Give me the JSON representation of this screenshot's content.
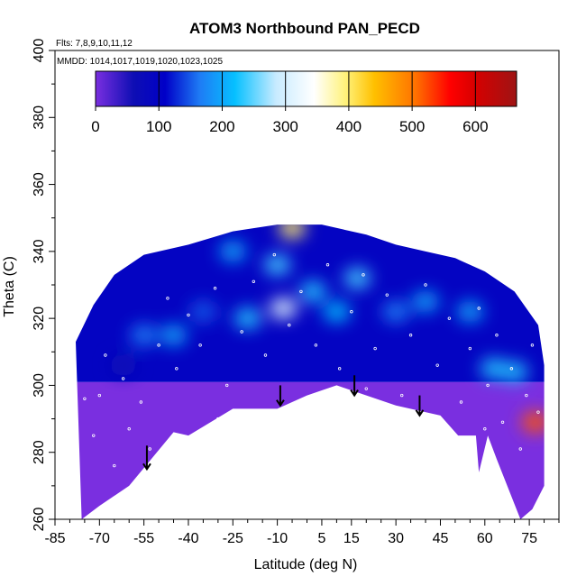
{
  "chart_data": {
    "type": "heatmap",
    "title": "ATOM3 Northbound PAN_PECD",
    "annotations": [
      "Flts: 7,8,9,10,11,12",
      "MMDD: 1014,1017,1019,1020,1023,1025"
    ],
    "xlabel": "Latitude (deg N)",
    "ylabel": "Theta (C)",
    "xlim": [
      -85,
      85
    ],
    "ylim": [
      260,
      400
    ],
    "x_ticks": [
      -85,
      -70,
      -55,
      -40,
      -25,
      -10,
      5,
      15,
      30,
      45,
      60,
      75
    ],
    "y_ticks": [
      260,
      280,
      300,
      320,
      340,
      360,
      380,
      400
    ],
    "colorbar": {
      "ticks": [
        0,
        100,
        200,
        300,
        400,
        500,
        600
      ],
      "range": [
        0,
        665
      ],
      "stops": [
        {
          "value": 0,
          "color": "#7a2fe0"
        },
        {
          "value": 60,
          "color": "#0e0eb4"
        },
        {
          "value": 110,
          "color": "#0000c8"
        },
        {
          "value": 165,
          "color": "#1e7cf5"
        },
        {
          "value": 220,
          "color": "#06c0ff"
        },
        {
          "value": 285,
          "color": "#c8ebff"
        },
        {
          "value": 345,
          "color": "#ffffff"
        },
        {
          "value": 395,
          "color": "#fff27a"
        },
        {
          "value": 440,
          "color": "#ffc000"
        },
        {
          "value": 505,
          "color": "#ff7200"
        },
        {
          "value": 560,
          "color": "#ff0000"
        },
        {
          "value": 600,
          "color": "#d60000"
        },
        {
          "value": 665,
          "color": "#9e1414"
        }
      ]
    },
    "data_envelope_bottom": [
      {
        "lat": -78,
        "theta": 313
      },
      {
        "lat": -76,
        "theta": 260
      },
      {
        "lat": -70,
        "theta": 264
      },
      {
        "lat": -60,
        "theta": 270
      },
      {
        "lat": -45,
        "theta": 286
      },
      {
        "lat": -40,
        "theta": 285
      },
      {
        "lat": -25,
        "theta": 293
      },
      {
        "lat": -10,
        "theta": 293
      },
      {
        "lat": 0,
        "theta": 297
      },
      {
        "lat": 10,
        "theta": 300
      },
      {
        "lat": 30,
        "theta": 294
      },
      {
        "lat": 45,
        "theta": 291
      },
      {
        "lat": 51,
        "theta": 285
      },
      {
        "lat": 57,
        "theta": 285
      },
      {
        "lat": 58,
        "theta": 274
      },
      {
        "lat": 61,
        "theta": 285
      },
      {
        "lat": 64,
        "theta": 278
      },
      {
        "lat": 72,
        "theta": 260
      },
      {
        "lat": 76,
        "theta": 263
      },
      {
        "lat": 80,
        "theta": 270
      },
      {
        "lat": 80,
        "theta": 285
      }
    ],
    "data_envelope_top": [
      {
        "lat": 80,
        "theta": 306
      },
      {
        "lat": 78,
        "theta": 318
      },
      {
        "lat": 70,
        "theta": 328
      },
      {
        "lat": 60,
        "theta": 334
      },
      {
        "lat": 50,
        "theta": 338
      },
      {
        "lat": 40,
        "theta": 340
      },
      {
        "lat": 30,
        "theta": 342
      },
      {
        "lat": 20,
        "theta": 345
      },
      {
        "lat": 5,
        "theta": 348
      },
      {
        "lat": -10,
        "theta": 348
      },
      {
        "lat": -25,
        "theta": 346
      },
      {
        "lat": -40,
        "theta": 342
      },
      {
        "lat": -55,
        "theta": 339
      },
      {
        "lat": -65,
        "theta": 333
      },
      {
        "lat": -72,
        "theta": 324
      },
      {
        "lat": -78,
        "theta": 313
      }
    ],
    "field_features": [
      {
        "lat": -62,
        "theta": 306,
        "value": 65
      },
      {
        "lat": -55,
        "theta": 315,
        "value": 170
      },
      {
        "lat": -45,
        "theta": 315,
        "value": 200
      },
      {
        "lat": -35,
        "theta": 322,
        "value": 150
      },
      {
        "lat": -20,
        "theta": 320,
        "value": 230
      },
      {
        "lat": -10,
        "theta": 336,
        "value": 240
      },
      {
        "lat": -8,
        "theta": 323,
        "value": 310
      },
      {
        "lat": 2,
        "theta": 328,
        "value": 230
      },
      {
        "lat": 10,
        "theta": 322,
        "value": 220
      },
      {
        "lat": 17,
        "theta": 332,
        "value": 240
      },
      {
        "lat": 30,
        "theta": 322,
        "value": 170
      },
      {
        "lat": 40,
        "theta": 325,
        "value": 200
      },
      {
        "lat": 55,
        "theta": 322,
        "value": 200
      },
      {
        "lat": 63,
        "theta": 305,
        "value": 230
      },
      {
        "lat": 70,
        "theta": 304,
        "value": 230
      },
      {
        "lat": 77,
        "theta": 289,
        "value": 520
      },
      {
        "lat": -5,
        "theta": 347,
        "value": 400
      },
      {
        "lat": -25,
        "theta": 340,
        "value": 200
      }
    ],
    "observation_points": [
      {
        "lat": -75,
        "theta": 296
      },
      {
        "lat": -72,
        "theta": 285
      },
      {
        "lat": -70,
        "theta": 297
      },
      {
        "lat": -68,
        "theta": 309
      },
      {
        "lat": -62,
        "theta": 302
      },
      {
        "lat": -60,
        "theta": 287
      },
      {
        "lat": -56,
        "theta": 295
      },
      {
        "lat": -50,
        "theta": 312
      },
      {
        "lat": -47,
        "theta": 326
      },
      {
        "lat": -44,
        "theta": 305
      },
      {
        "lat": -40,
        "theta": 321
      },
      {
        "lat": -36,
        "theta": 312
      },
      {
        "lat": -31,
        "theta": 329
      },
      {
        "lat": -27,
        "theta": 300
      },
      {
        "lat": -22,
        "theta": 316
      },
      {
        "lat": -18,
        "theta": 331
      },
      {
        "lat": -14,
        "theta": 309
      },
      {
        "lat": -11,
        "theta": 339
      },
      {
        "lat": -6,
        "theta": 318
      },
      {
        "lat": -2,
        "theta": 328
      },
      {
        "lat": 3,
        "theta": 312
      },
      {
        "lat": 7,
        "theta": 336
      },
      {
        "lat": 11,
        "theta": 305
      },
      {
        "lat": 15,
        "theta": 322
      },
      {
        "lat": 19,
        "theta": 333
      },
      {
        "lat": 23,
        "theta": 311
      },
      {
        "lat": 27,
        "theta": 327
      },
      {
        "lat": 32,
        "theta": 297
      },
      {
        "lat": 35,
        "theta": 315
      },
      {
        "lat": 40,
        "theta": 330
      },
      {
        "lat": 44,
        "theta": 306
      },
      {
        "lat": 48,
        "theta": 320
      },
      {
        "lat": 52,
        "theta": 295
      },
      {
        "lat": 55,
        "theta": 311
      },
      {
        "lat": 58,
        "theta": 323
      },
      {
        "lat": 61,
        "theta": 300
      },
      {
        "lat": 64,
        "theta": 315
      },
      {
        "lat": 66,
        "theta": 289
      },
      {
        "lat": 69,
        "theta": 305
      },
      {
        "lat": 72,
        "theta": 281
      },
      {
        "lat": 74,
        "theta": 297
      },
      {
        "lat": 76,
        "theta": 312
      },
      {
        "lat": 78,
        "theta": 292
      },
      {
        "lat": -65,
        "theta": 276
      },
      {
        "lat": -53,
        "theta": 281
      },
      {
        "lat": -30,
        "theta": 290
      },
      {
        "lat": 20,
        "theta": 299
      },
      {
        "lat": 60,
        "theta": 287
      }
    ],
    "arrows": [
      {
        "lat": -54,
        "theta_from": 282,
        "theta_to": 275
      },
      {
        "lat": -9,
        "theta_from": 300,
        "theta_to": 294
      },
      {
        "lat": 16,
        "theta_from": 303,
        "theta_to": 297
      },
      {
        "lat": 38,
        "theta_from": 297,
        "theta_to": 291
      }
    ]
  }
}
